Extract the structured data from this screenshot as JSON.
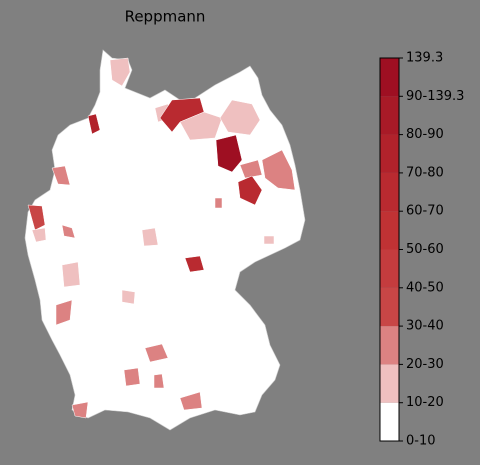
{
  "title": "Reppmann",
  "colorbar": {
    "labels": [
      "0-10",
      "10-20",
      "20-30",
      "30-40",
      "40-50",
      "50-60",
      "60-70",
      "70-80",
      "80-90",
      "90-139.3",
      "139.3"
    ],
    "colors": [
      "#ffffff",
      "#efc0c0",
      "#dc8282",
      "#c84646",
      "#c43c3e",
      "#c03234",
      "#b92a30",
      "#b1222b",
      "#a81a27",
      "#9e0f22"
    ]
  }
}
